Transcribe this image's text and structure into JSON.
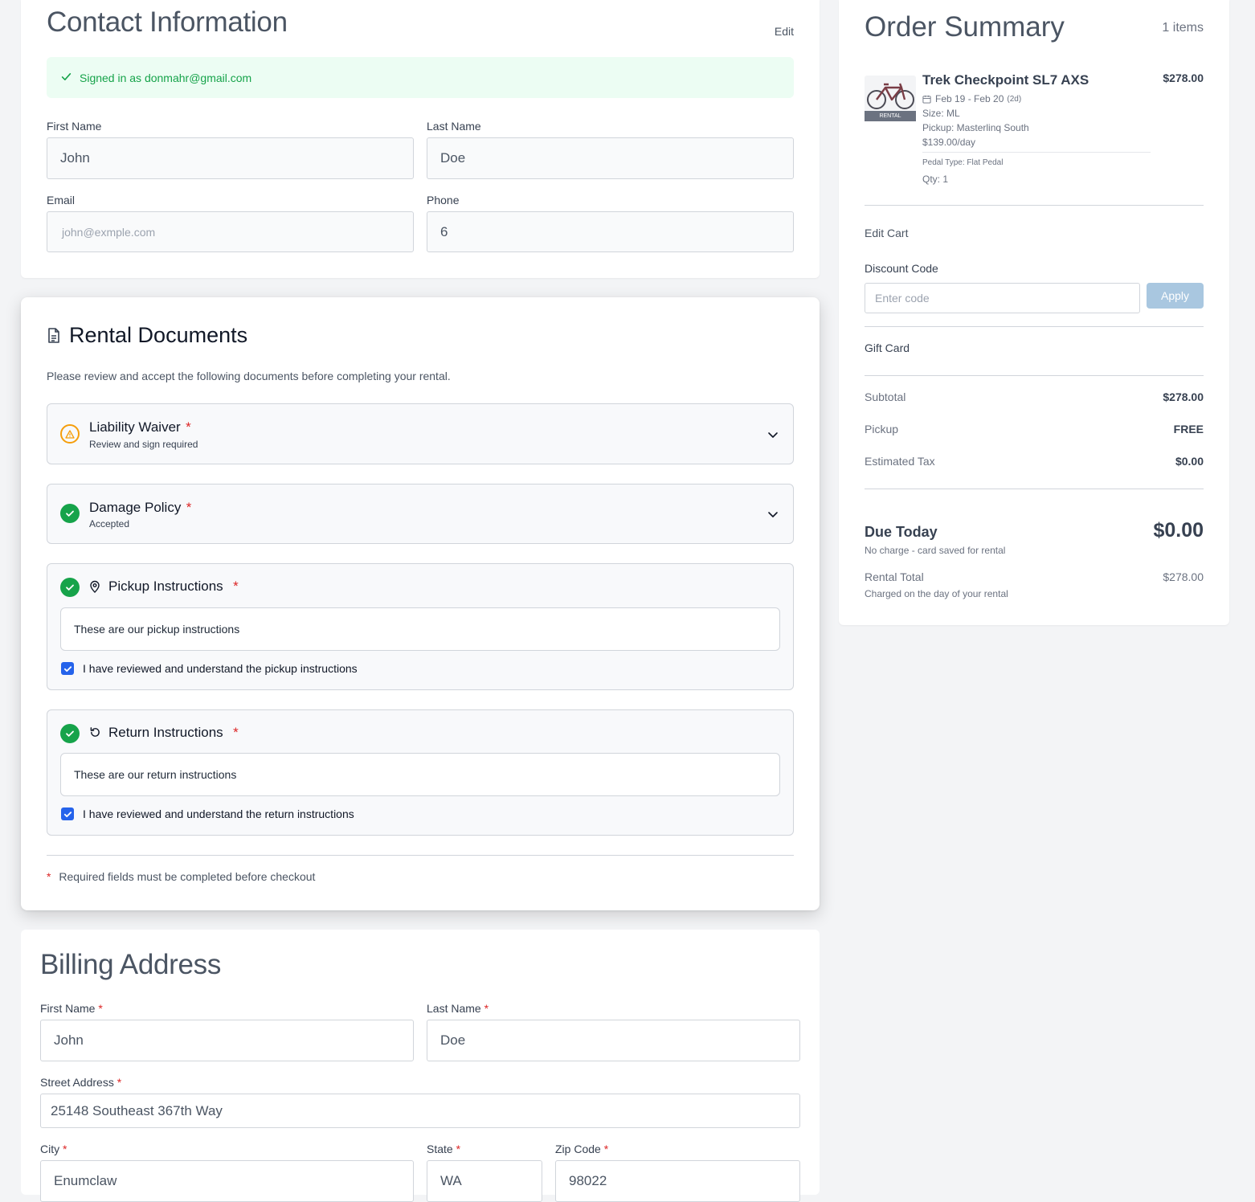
{
  "contact": {
    "title": "Contact Information",
    "edit_label": "Edit",
    "signed_in": "Signed in as donmahr@gmail.com",
    "first_name_label": "First Name",
    "first_name_value": "John",
    "last_name_label": "Last Name",
    "last_name_value": "Doe",
    "email_label": "Email",
    "email_placeholder": "john@exmple.com",
    "phone_label": "Phone",
    "phone_value": "6"
  },
  "rental_docs": {
    "title": "Rental Documents",
    "intro": "Please review and accept the following documents before completing your rental.",
    "liability": {
      "title": "Liability Waiver",
      "required": "*",
      "status": "Review and sign required"
    },
    "damage": {
      "title": "Damage Policy",
      "required": "*",
      "status": "Accepted"
    },
    "pickup": {
      "title": "Pickup Instructions",
      "required": "*",
      "text": "These are our pickup instructions",
      "checkbox_label": "I have reviewed and understand the pickup instructions",
      "checked": true
    },
    "return": {
      "title": "Return Instructions",
      "required": "*",
      "text": "These are our return instructions",
      "checkbox_label": "I have reviewed and understand the return instructions",
      "checked": true
    },
    "footnote_star": "*",
    "footnote": "Required fields must be completed before checkout"
  },
  "billing": {
    "title": "Billing Address",
    "first_name_label": "First Name",
    "first_name_value": "John",
    "last_name_label": "Last Name",
    "last_name_value": "Doe",
    "street_label": "Street Address",
    "street_value": "25148 Southeast 367th Way",
    "city_label": "City",
    "city_value": "Enumclaw",
    "state_label": "State",
    "state_value": "WA",
    "zip_label": "Zip Code",
    "zip_value": "98022",
    "required": "*"
  },
  "summary": {
    "title": "Order Summary",
    "item_count": "1 items",
    "item": {
      "name": "Trek Checkpoint SL7 AXS",
      "price": "$278.00",
      "dates": "Feb 19 - Feb 20",
      "duration": "(2d)",
      "size": "Size: ML",
      "pickup": "Pickup: Masterlinq South",
      "rate": "$139.00/day",
      "pedal": "Pedal Type: Flat Pedal",
      "qty": "Qty: 1",
      "badge": "RENTAL"
    },
    "edit_cart": "Edit Cart",
    "discount_label": "Discount Code",
    "discount_placeholder": "Enter code",
    "apply_label": "Apply",
    "gift_card": "Gift Card",
    "subtotal_label": "Subtotal",
    "subtotal_value": "$278.00",
    "pickup_label": "Pickup",
    "pickup_value": "FREE",
    "tax_label": "Estimated Tax",
    "tax_value": "$0.00",
    "due_label": "Due Today",
    "due_value": "$0.00",
    "due_note": "No charge - card saved for rental",
    "rental_total_label": "Rental Total",
    "rental_total_value": "$278.00",
    "rental_total_note": "Charged on the day of your rental"
  },
  "colors": {
    "accent_green": "#16a34a",
    "warning": "#f59e0b",
    "required_red": "#dc2626",
    "checkbox_blue": "#2563eb",
    "apply_button": "#a9c7e0"
  }
}
